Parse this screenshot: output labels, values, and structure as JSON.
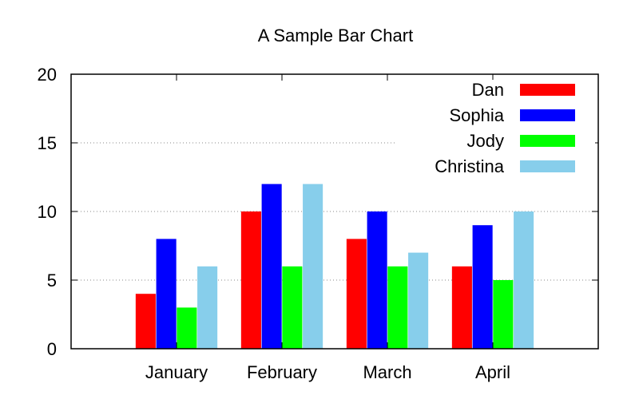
{
  "chart_data": {
    "type": "bar",
    "title": "A Sample Bar Chart",
    "xlabel": "",
    "ylabel": "",
    "ylim": [
      0,
      20
    ],
    "yticks": [
      0,
      5,
      10,
      15,
      20
    ],
    "categories": [
      "January",
      "February",
      "March",
      "April"
    ],
    "series": [
      {
        "name": "Dan",
        "color": "#ff0000",
        "values": [
          4,
          10,
          8,
          6
        ]
      },
      {
        "name": "Sophia",
        "color": "#0000ff",
        "values": [
          8,
          12,
          10,
          9
        ]
      },
      {
        "name": "Jody",
        "color": "#00ff00",
        "values": [
          3,
          6,
          6,
          5
        ]
      },
      {
        "name": "Christina",
        "color": "#87ceeb",
        "values": [
          6,
          12,
          7,
          10
        ]
      }
    ],
    "grid": {
      "y": true,
      "x": false,
      "style": "dotted"
    },
    "legend": {
      "position": "top-right"
    }
  }
}
